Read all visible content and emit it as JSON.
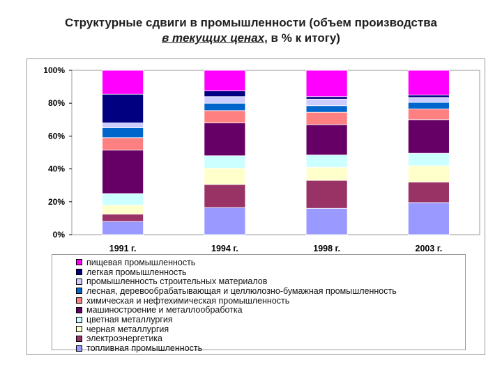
{
  "title": {
    "line1": "Структурные сдвиги в промышленности (объем производства",
    "line2_em": "в текущих ценах",
    "line2_rest": ", в % к итогу)"
  },
  "chart_data": {
    "type": "bar",
    "stacked": true,
    "categories": [
      "1991 г.",
      "1994 г.",
      "1998 г.",
      "2003 г."
    ],
    "ylim": [
      0,
      100
    ],
    "yticks": [
      "0%",
      "20%",
      "40%",
      "60%",
      "80%",
      "100%"
    ],
    "grid": false,
    "legend_position": "bottom",
    "series": [
      {
        "name": "топливная промышленность",
        "color": "#9999ff",
        "values": [
          8,
          16.5,
          16,
          19.5
        ]
      },
      {
        "name": "электроэнергетика",
        "color": "#993366",
        "values": [
          4.5,
          14,
          17,
          12.5
        ]
      },
      {
        "name": "черная металлургия",
        "color": "#ffffcc",
        "values": [
          5.5,
          10,
          8,
          10
        ]
      },
      {
        "name": "цветная металлургия",
        "color": "#ccffff",
        "values": [
          7,
          7.5,
          7.5,
          7.5
        ]
      },
      {
        "name": "машиностроение и металлообработка",
        "color": "#660066",
        "values": [
          26.5,
          20,
          18.5,
          20.5
        ]
      },
      {
        "name": "химическая и нефтехимическая промышленность",
        "color": "#ff8080",
        "values": [
          7.5,
          7.5,
          7.5,
          6.5
        ]
      },
      {
        "name": "лесная, деревообрабатывающая и целлюлозно-бумажная промышленность",
        "color": "#0066cc",
        "values": [
          6,
          4.5,
          4,
          4
        ]
      },
      {
        "name": "промышленность строительных материалов",
        "color": "#ccccff",
        "values": [
          3,
          4,
          4,
          3
        ]
      },
      {
        "name": "легкая промышленность",
        "color": "#000080",
        "values": [
          17.5,
          3.5,
          1.5,
          1.5
        ]
      },
      {
        "name": "пищевая промышленность",
        "color": "#ff00ff",
        "values": [
          14.5,
          12.5,
          16,
          15
        ]
      }
    ]
  }
}
